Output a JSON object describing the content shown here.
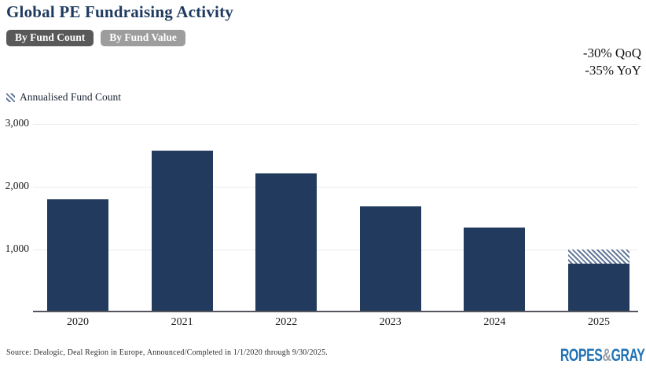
{
  "header": {
    "title": "Global PE Fundraising Activity",
    "tabs": [
      {
        "label": "By Fund Count",
        "active": true
      },
      {
        "label": "By Fund Value",
        "active": false
      }
    ],
    "annotation_qoq": "-30% QoQ",
    "annotation_yoy": "-35% YoY"
  },
  "legend": {
    "swatch": "hatched-diagonal-stripes",
    "label": "Annualised Fund Count"
  },
  "chart_data": {
    "type": "bar",
    "title": "Global PE Fundraising Activity",
    "categories": [
      "2020",
      "2021",
      "2022",
      "2023",
      "2024",
      "2025"
    ],
    "series": [
      {
        "name": "Fund Count",
        "values": [
          1800,
          2580,
          2210,
          1690,
          1350,
          770
        ],
        "style": "solid"
      },
      {
        "name": "Annualised Fund Count",
        "values": [
          null,
          null,
          null,
          null,
          null,
          1000
        ],
        "style": "hatched",
        "note": "hatched extension drawn on top of 2025 bar from 770 up to 1000"
      }
    ],
    "xlabel": "",
    "ylabel": "",
    "ylim": [
      0,
      3000
    ],
    "yticks": [
      {
        "label": "1,000",
        "value": 1000
      },
      {
        "label": "2,000",
        "value": 2000
      },
      {
        "label": "3,000",
        "value": 3000
      }
    ],
    "grid": true,
    "legend_position": "top-left"
  },
  "footer": {
    "source": "Source: Dealogic, Deal Region in Europe, Announced/Completed in 1/1/2020 through 9/30/2025.",
    "logo": {
      "ropes": "ROPES",
      "amp": "&",
      "gray": "GRAY"
    }
  },
  "colors": {
    "bar": "#213a5e",
    "title": "#1e3a5f",
    "tab_active_bg": "#595959",
    "tab_inactive_bg": "#9d9d9d",
    "hatch_stripe": "#64789a",
    "gridline": "#ececec",
    "axis": "#55555e",
    "logo_blue": "#2173b5",
    "logo_gray": "#9ba0a6"
  }
}
